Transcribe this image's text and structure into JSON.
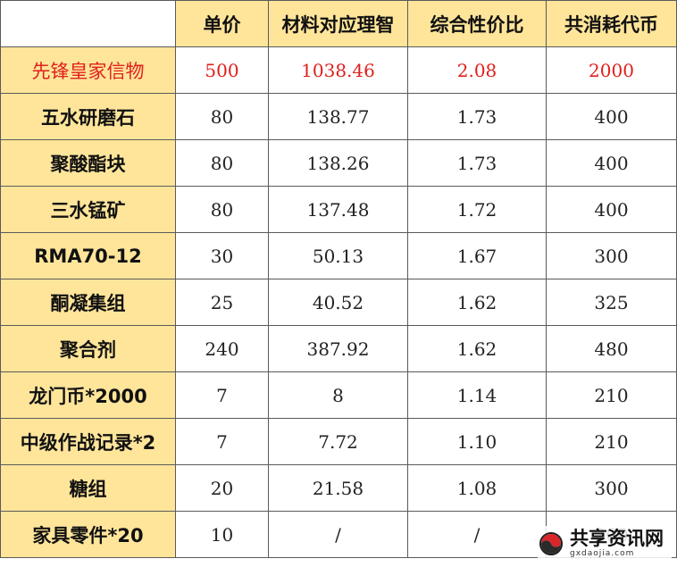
{
  "table": {
    "columns": [
      "",
      "单价",
      "材料对应理智",
      "综合性价比",
      "共消耗代币"
    ],
    "rows": [
      {
        "name": "先锋皇家信物",
        "values": [
          "500",
          "1038.46",
          "2.08",
          "2000"
        ],
        "highlight": true
      },
      {
        "name": "五水研磨石",
        "values": [
          "80",
          "138.77",
          "1.73",
          "400"
        ]
      },
      {
        "name": "聚酸酯块",
        "values": [
          "80",
          "138.26",
          "1.73",
          "400"
        ]
      },
      {
        "name": "三水锰矿",
        "values": [
          "80",
          "137.48",
          "1.72",
          "400"
        ]
      },
      {
        "name": "RMA70-12",
        "values": [
          "30",
          "50.13",
          "1.67",
          "300"
        ]
      },
      {
        "name": "酮凝集组",
        "values": [
          "25",
          "40.52",
          "1.62",
          "325"
        ]
      },
      {
        "name": "聚合剂",
        "values": [
          "240",
          "387.92",
          "1.62",
          "480"
        ]
      },
      {
        "name": "龙门币*2000",
        "values": [
          "7",
          "8",
          "1.14",
          "210"
        ]
      },
      {
        "name": "中级作战记录*2",
        "values": [
          "7",
          "7.72",
          "1.10",
          "210"
        ]
      },
      {
        "name": "糖组",
        "values": [
          "20",
          "21.58",
          "1.08",
          "300"
        ]
      },
      {
        "name": "家具零件*20",
        "values": [
          "10",
          "/",
          "/",
          "300"
        ]
      }
    ]
  },
  "colors": {
    "header_bg": "#ffe59a",
    "highlight_text": "#e0201c",
    "border": "#5a5a5a"
  },
  "watermark": {
    "title": "共享资讯网",
    "subtitle": "gxdaojia.com",
    "icon": "swirl-logo-icon"
  }
}
